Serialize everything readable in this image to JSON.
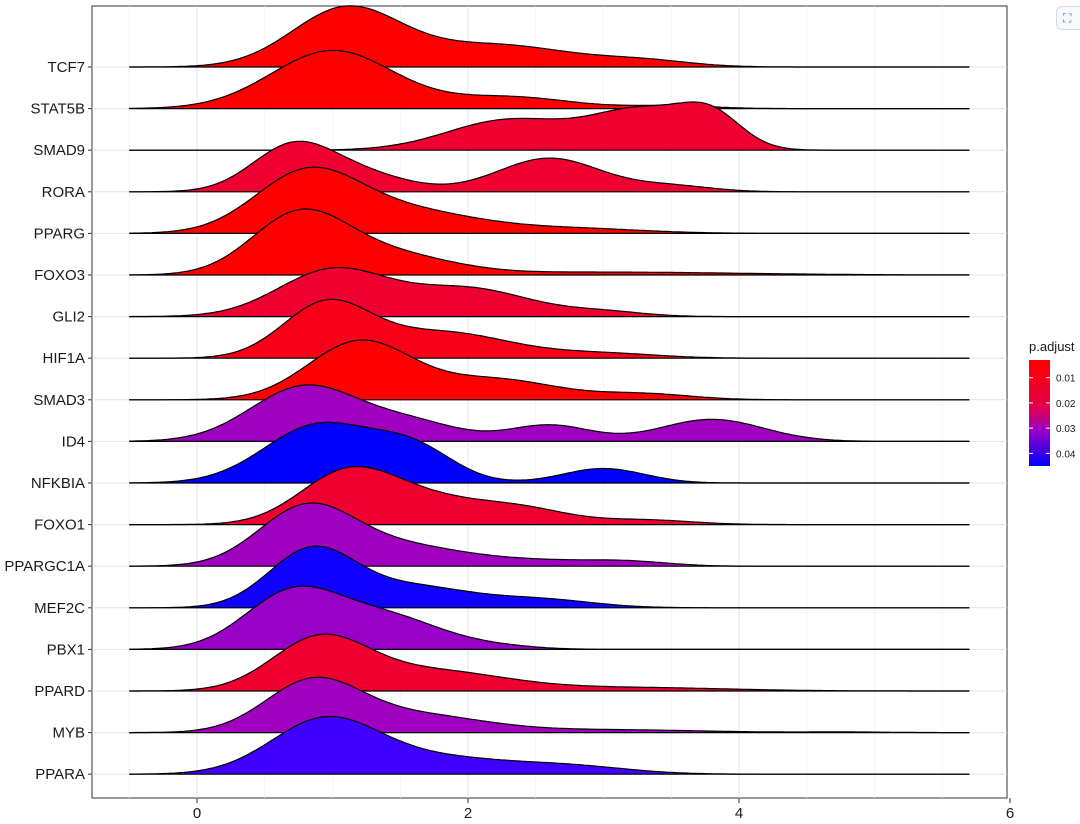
{
  "chart_data": {
    "type": "ridgeline",
    "title": "",
    "xlabel": "",
    "ylabel": "",
    "xlim": [
      -0.8,
      6.0
    ],
    "xticks": [
      0,
      2,
      4,
      6
    ],
    "grid": true,
    "legend": {
      "title": "p.adjust",
      "position": "right",
      "ticks": [
        0.01,
        0.02,
        0.03,
        0.04
      ],
      "tick_labels": [
        "0.01",
        "0.02",
        "0.03",
        "0.04"
      ],
      "range": [
        0.003,
        0.045
      ],
      "colors": {
        "low": "#ff0000",
        "mid": "#a000c0",
        "high": "#0000ff"
      }
    },
    "series": [
      {
        "label": "TCF7",
        "p_adjust": 0.003,
        "color": "#ff0000",
        "range": [
          -0.5,
          5.7
        ],
        "peaks": [
          [
            1.1,
            0.4,
            1.0
          ],
          [
            2.2,
            0.55,
            0.38
          ],
          [
            3.3,
            0.35,
            0.1
          ]
        ]
      },
      {
        "label": "STAT5B",
        "p_adjust": 0.004,
        "color": "#ff0000",
        "range": [
          -0.5,
          5.7
        ],
        "peaks": [
          [
            1.0,
            0.45,
            1.0
          ],
          [
            2.3,
            0.45,
            0.2
          ],
          [
            3.5,
            0.3,
            0.05
          ]
        ]
      },
      {
        "label": "SMAD9",
        "p_adjust": 0.012,
        "color": "#f00030",
        "range": [
          -0.5,
          5.7
        ],
        "peaks": [
          [
            2.3,
            0.45,
            0.52
          ],
          [
            3.3,
            0.38,
            0.68
          ],
          [
            3.8,
            0.22,
            0.48
          ]
        ]
      },
      {
        "label": "RORA",
        "p_adjust": 0.012,
        "color": "#f00030",
        "range": [
          -0.5,
          5.7
        ],
        "peaks": [
          [
            0.7,
            0.3,
            0.75
          ],
          [
            1.2,
            0.35,
            0.3
          ],
          [
            2.6,
            0.38,
            0.58
          ],
          [
            3.5,
            0.3,
            0.1
          ]
        ]
      },
      {
        "label": "PPARG",
        "p_adjust": 0.003,
        "color": "#ff0000",
        "range": [
          -0.5,
          5.7
        ],
        "peaks": [
          [
            0.8,
            0.38,
            0.95
          ],
          [
            1.5,
            0.55,
            0.4
          ],
          [
            2.8,
            0.5,
            0.08
          ]
        ]
      },
      {
        "label": "FOXO3",
        "p_adjust": 0.003,
        "color": "#ff0000",
        "range": [
          -0.5,
          5.7
        ],
        "peaks": [
          [
            0.75,
            0.35,
            1.0
          ],
          [
            1.4,
            0.45,
            0.35
          ],
          [
            3.0,
            1.0,
            0.05
          ]
        ]
      },
      {
        "label": "GLI2",
        "p_adjust": 0.011,
        "color": "#f00030",
        "range": [
          -0.5,
          5.7
        ],
        "peaks": [
          [
            1.0,
            0.4,
            0.8
          ],
          [
            2.0,
            0.45,
            0.48
          ],
          [
            3.0,
            0.3,
            0.08
          ]
        ]
      },
      {
        "label": "HIF1A",
        "p_adjust": 0.006,
        "color": "#f80018",
        "range": [
          -0.5,
          5.7
        ],
        "peaks": [
          [
            0.95,
            0.32,
            0.9
          ],
          [
            1.8,
            0.5,
            0.45
          ],
          [
            3.0,
            0.4,
            0.08
          ]
        ]
      },
      {
        "label": "SMAD3",
        "p_adjust": 0.003,
        "color": "#ff0000",
        "range": [
          -0.5,
          5.7
        ],
        "peaks": [
          [
            1.2,
            0.38,
            1.0
          ],
          [
            2.2,
            0.45,
            0.35
          ],
          [
            3.3,
            0.35,
            0.1
          ]
        ]
      },
      {
        "label": "ID4",
        "p_adjust": 0.027,
        "color": "#a000c0",
        "range": [
          -0.5,
          5.7
        ],
        "peaks": [
          [
            0.8,
            0.4,
            0.95
          ],
          [
            1.6,
            0.35,
            0.3
          ],
          [
            2.6,
            0.3,
            0.28
          ],
          [
            3.8,
            0.38,
            0.38
          ]
        ]
      },
      {
        "label": "NFKBIA",
        "p_adjust": 0.045,
        "color": "#0000ff",
        "range": [
          -0.5,
          5.7
        ],
        "peaks": [
          [
            0.9,
            0.4,
            1.0
          ],
          [
            1.6,
            0.3,
            0.55
          ],
          [
            3.0,
            0.3,
            0.25
          ]
        ]
      },
      {
        "label": "FOXO1",
        "p_adjust": 0.011,
        "color": "#f00030",
        "range": [
          -0.5,
          5.7
        ],
        "peaks": [
          [
            1.1,
            0.35,
            0.85
          ],
          [
            1.7,
            0.4,
            0.4
          ],
          [
            2.4,
            0.35,
            0.25
          ],
          [
            3.3,
            0.35,
            0.08
          ]
        ]
      },
      {
        "label": "PPARGC1A",
        "p_adjust": 0.027,
        "color": "#a000c0",
        "range": [
          -0.5,
          5.7
        ],
        "peaks": [
          [
            0.8,
            0.35,
            0.95
          ],
          [
            1.5,
            0.5,
            0.35
          ],
          [
            2.6,
            0.4,
            0.08
          ],
          [
            3.2,
            0.3,
            0.07
          ]
        ]
      },
      {
        "label": "MEF2C",
        "p_adjust": 0.044,
        "color": "#1000ff",
        "range": [
          -0.5,
          5.7
        ],
        "peaks": [
          [
            0.85,
            0.32,
            1.0
          ],
          [
            1.6,
            0.4,
            0.35
          ],
          [
            2.5,
            0.4,
            0.15
          ]
        ]
      },
      {
        "label": "PBX1",
        "p_adjust": 0.028,
        "color": "#9800c8",
        "range": [
          -0.5,
          5.7
        ],
        "peaks": [
          [
            0.7,
            0.35,
            0.95
          ],
          [
            1.4,
            0.4,
            0.55
          ],
          [
            2.2,
            0.3,
            0.05
          ]
        ]
      },
      {
        "label": "PPARD",
        "p_adjust": 0.011,
        "color": "#f00030",
        "range": [
          -0.5,
          5.7
        ],
        "peaks": [
          [
            0.9,
            0.35,
            0.85
          ],
          [
            1.7,
            0.55,
            0.35
          ],
          [
            3.2,
            0.7,
            0.06
          ]
        ]
      },
      {
        "label": "MYB",
        "p_adjust": 0.027,
        "color": "#a000c0",
        "range": [
          -0.5,
          5.7
        ],
        "peaks": [
          [
            0.85,
            0.35,
            0.85
          ],
          [
            1.6,
            0.5,
            0.3
          ],
          [
            3.0,
            0.7,
            0.05
          ],
          [
            4.8,
            0.3,
            0.01
          ]
        ]
      },
      {
        "label": "PPARA",
        "p_adjust": 0.04,
        "color": "#4000ff",
        "range": [
          -0.5,
          5.7
        ],
        "peaks": [
          [
            0.95,
            0.4,
            0.95
          ],
          [
            1.8,
            0.45,
            0.25
          ],
          [
            2.7,
            0.45,
            0.15
          ]
        ]
      }
    ]
  }
}
